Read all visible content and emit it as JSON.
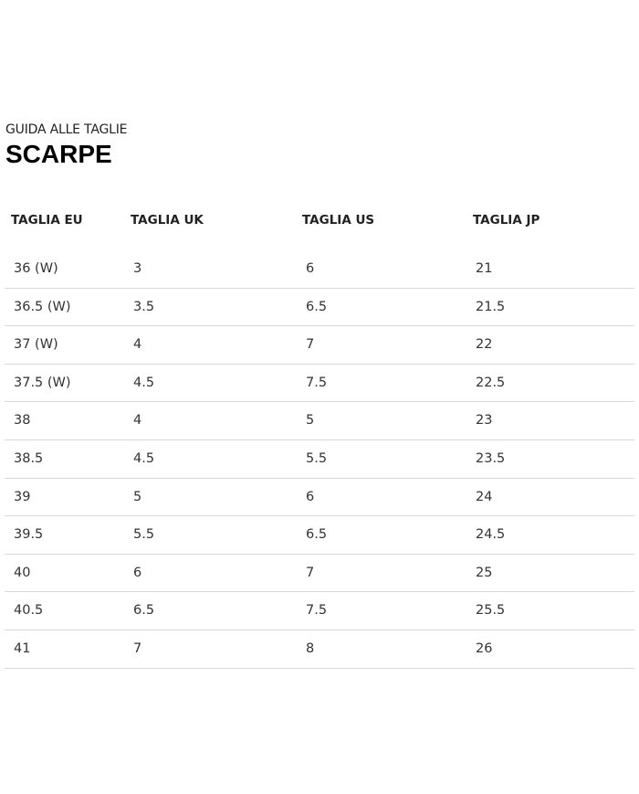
{
  "eyebrow": "GUIDA ALLE TAGLIE",
  "title": "SCARPE",
  "headers": [
    "TAGLIA EU",
    "TAGLIA UK",
    "TAGLIA US",
    "TAGLIA JP"
  ],
  "rows": [
    [
      "36 (W)",
      "3",
      "6",
      "21"
    ],
    [
      "36.5 (W)",
      "3.5",
      "6.5",
      "21.5"
    ],
    [
      "37 (W)",
      "4",
      "7",
      "22"
    ],
    [
      "37.5 (W)",
      "4.5",
      "7.5",
      "22.5"
    ],
    [
      "38",
      "4",
      "5",
      "23"
    ],
    [
      "38.5",
      "4.5",
      "5.5",
      "23.5"
    ],
    [
      "39",
      "5",
      "6",
      "24"
    ],
    [
      "39.5",
      "5.5",
      "6.5",
      "24.5"
    ],
    [
      "40",
      "6",
      "7",
      "25"
    ],
    [
      "40.5",
      "6.5",
      "7.5",
      "25.5"
    ],
    [
      "41",
      "7",
      "8",
      "26"
    ]
  ]
}
